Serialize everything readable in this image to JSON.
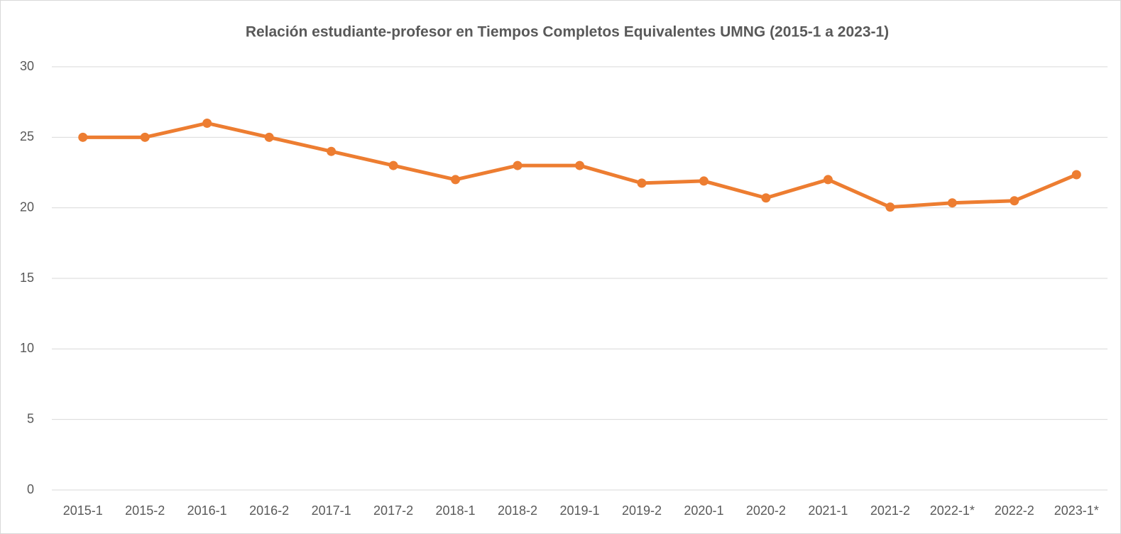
{
  "chart_data": {
    "type": "line",
    "title": "Relación estudiante-profesor en Tiempos Completos Equivalentes UMNG (2015-1 a 2023-1)",
    "categories": [
      "2015-1",
      "2015-2",
      "2016-1",
      "2016-2",
      "2017-1",
      "2017-2",
      "2018-1",
      "2018-2",
      "2019-1",
      "2019-2",
      "2020-1",
      "2020-2",
      "2021-1",
      "2021-2",
      "2022-1*",
      "2022-2",
      "2023-1*"
    ],
    "series": [
      {
        "name": "Relación estudiante-profesor",
        "color": "#ed7d31",
        "values": [
          25,
          25,
          26,
          25,
          24,
          23,
          22,
          23,
          23,
          21.75,
          21.9,
          20.7,
          22,
          20.05,
          20.35,
          20.5,
          22.35
        ]
      }
    ],
    "ylim": [
      0,
      30
    ],
    "yticks": [
      0,
      5,
      10,
      15,
      20,
      25,
      30
    ],
    "grid": true
  }
}
